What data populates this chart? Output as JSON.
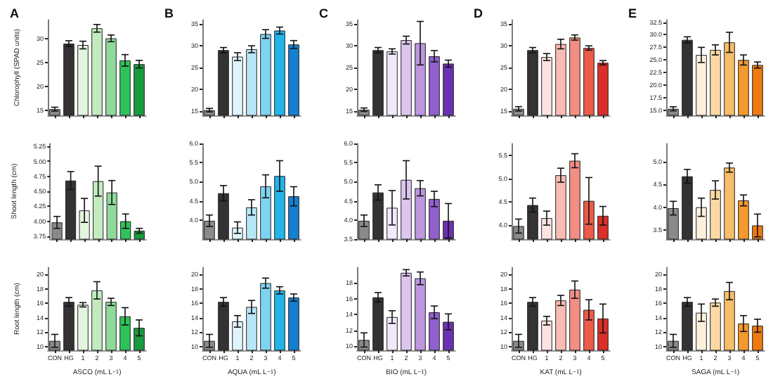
{
  "chart_data": [
    {
      "type": "bar",
      "title": "A",
      "ylabel": "Chlorophyll (SPAD units)",
      "values": [
        15.3,
        29,
        28.7,
        32.2,
        30.1,
        25.5,
        24.7
      ],
      "errors": [
        0.4,
        0.6,
        0.8,
        0.8,
        0.7,
        1.2,
        0.8
      ],
      "colors": [
        "#8a8a8a",
        "#333333",
        "#e3f5df",
        "#c2ecc0",
        "#8fd99a",
        "#2ec25a",
        "#1a9a3f"
      ],
      "ylim": [
        14,
        34
      ],
      "yticks": [
        15,
        20,
        25,
        30
      ],
      "tick_labels": "y"
    },
    {
      "type": "bar",
      "title": "B",
      "values": [
        15.2,
        29,
        27.5,
        29.2,
        32.7,
        33.5,
        30.3
      ],
      "errors": [
        0.4,
        0.6,
        0.9,
        0.8,
        1,
        0.8,
        0.9
      ],
      "colors": [
        "#8a8a8a",
        "#333333",
        "#dff3fb",
        "#b7e6f7",
        "#7fd3f2",
        "#22b5ea",
        "#1580d0"
      ],
      "ylim": [
        14,
        36
      ],
      "yticks": [
        15,
        20,
        25,
        30,
        35
      ],
      "tick_labels": "y"
    },
    {
      "type": "bar",
      "title": "C",
      "values": [
        15.3,
        29,
        28.7,
        31.3,
        30.6,
        27.6,
        25.9
      ],
      "errors": [
        0.4,
        0.6,
        0.6,
        0.9,
        5,
        1.3,
        0.8
      ],
      "colors": [
        "#8a8a8a",
        "#333333",
        "#f1e8f8",
        "#dcc6ef",
        "#bd97e0",
        "#9060cc",
        "#6a32b0"
      ],
      "ylim": [
        14,
        36
      ],
      "yticks": [
        15,
        20,
        25,
        30,
        35
      ],
      "tick_labels": "y"
    },
    {
      "type": "bar",
      "title": "D",
      "values": [
        15.5,
        29,
        27.4,
        30.4,
        31.9,
        29.5,
        26.1
      ],
      "errors": [
        0.5,
        0.6,
        0.8,
        1.1,
        0.6,
        0.5,
        0.5
      ],
      "colors": [
        "#8a8a8a",
        "#333333",
        "#fde4e1",
        "#f8bcb5",
        "#f28f84",
        "#ec5a48",
        "#d9302a"
      ],
      "ylim": [
        14,
        36
      ],
      "yticks": [
        15,
        20,
        25,
        30,
        35
      ],
      "tick_labels": "y"
    },
    {
      "type": "bar",
      "title": "E",
      "values": [
        15.3,
        29,
        26,
        27,
        28.5,
        25,
        24
      ],
      "errors": [
        0.4,
        0.6,
        1.5,
        1,
        2,
        1,
        0.6
      ],
      "colors": [
        "#8a8a8a",
        "#333333",
        "#fdf1dc",
        "#fbd9a4",
        "#f8bd6a",
        "#f3992e",
        "#ec7a10"
      ],
      "ylim": [
        14,
        33
      ],
      "yticks": [
        {
          "value": 15,
          "label": "15.0"
        },
        17.5,
        {
          "value": 20,
          "label": "20.0"
        },
        22.5,
        {
          "value": 25,
          "label": "25.0"
        },
        27.5,
        {
          "value": 30,
          "label": "30.0"
        },
        32.5
      ],
      "tick_labels": "y"
    },
    {
      "type": "bar",
      "ylabel": "Shoot length (cm)",
      "values": [
        3.98,
        4.68,
        4.18,
        4.67,
        4.48,
        4.0,
        3.84
      ],
      "errors": [
        0.1,
        0.15,
        0.2,
        0.25,
        0.2,
        0.12,
        0.04
      ],
      "colors": [
        "#8a8a8a",
        "#333333",
        "#e3f5df",
        "#c2ecc0",
        "#8fd99a",
        "#2ec25a",
        "#1a9a3f"
      ],
      "ylim": [
        3.7,
        5.3
      ],
      "yticks": [
        3.75,
        {
          "value": 4,
          "label": "4.00"
        },
        4.25,
        {
          "value": 4.5,
          "label": "4.50"
        },
        4.75,
        {
          "value": 5,
          "label": "5.00"
        },
        5.25
      ],
      "tick_labels": "y"
    },
    {
      "type": "bar",
      "values": [
        3.98,
        4.7,
        3.8,
        4.33,
        4.88,
        5.15,
        4.62
      ],
      "errors": [
        0.15,
        0.2,
        0.15,
        0.2,
        0.3,
        0.4,
        0.25
      ],
      "colors": [
        "#8a8a8a",
        "#333333",
        "#dff3fb",
        "#b7e6f7",
        "#7fd3f2",
        "#22b5ea",
        "#1580d0"
      ],
      "ylim": [
        3.5,
        6
      ],
      "yticks": [
        {
          "value": 4,
          "label": "4.0"
        },
        4.5,
        {
          "value": 5,
          "label": "5.0"
        },
        5.5,
        {
          "value": 6,
          "label": "6.0"
        }
      ],
      "tick_labels": "y"
    },
    {
      "type": "bar",
      "values": [
        3.98,
        4.72,
        4.32,
        5.05,
        4.83,
        4.55,
        3.98
      ],
      "errors": [
        0.15,
        0.2,
        0.45,
        0.5,
        0.2,
        0.2,
        0.45
      ],
      "colors": [
        "#8a8a8a",
        "#333333",
        "#f1e8f8",
        "#dcc6ef",
        "#bd97e0",
        "#9060cc",
        "#6a32b0"
      ],
      "ylim": [
        3.5,
        6
      ],
      "yticks": [
        3.5,
        {
          "value": 4,
          "label": "4.0"
        },
        4.5,
        {
          "value": 5,
          "label": "5.0"
        },
        5.5,
        {
          "value": 6,
          "label": "6.0"
        }
      ],
      "tick_labels": "y"
    },
    {
      "type": "bar",
      "values": [
        3.98,
        4.43,
        4.15,
        5.07,
        5.38,
        4.52,
        4.2
      ],
      "errors": [
        0.15,
        0.15,
        0.15,
        0.15,
        0.15,
        0.5,
        0.2
      ],
      "colors": [
        "#8a8a8a",
        "#333333",
        "#fde4e1",
        "#f8bcb5",
        "#f28f84",
        "#ec5a48",
        "#d9302a"
      ],
      "ylim": [
        3.7,
        5.75
      ],
      "yticks": [
        {
          "value": 4,
          "label": "4.0"
        },
        4.5,
        {
          "value": 5,
          "label": "5.0"
        },
        5.5
      ],
      "tick_labels": "y"
    },
    {
      "type": "bar",
      "values": [
        3.98,
        4.68,
        4.0,
        4.38,
        4.87,
        4.15,
        3.6
      ],
      "errors": [
        0.15,
        0.15,
        0.2,
        0.2,
        0.1,
        0.12,
        0.25
      ],
      "colors": [
        "#8a8a8a",
        "#333333",
        "#fdf1dc",
        "#fbd9a4",
        "#f8bd6a",
        "#f3992e",
        "#ec7a10"
      ],
      "ylim": [
        3.3,
        5.4
      ],
      "yticks": [
        3.5,
        {
          "value": 4,
          "label": "4.0"
        },
        4.5,
        {
          "value": 5,
          "label": "5.0"
        }
      ],
      "tick_labels": "y"
    },
    {
      "type": "bar",
      "ylabel": "Root length (cm)",
      "xlabel": "ASCO (mL L$^{−1}$)",
      "categories": [
        "CON",
        "HG",
        "1",
        "2",
        "3",
        "4",
        "5"
      ],
      "values": [
        10.8,
        16.2,
        15.8,
        17.8,
        16.2,
        14.2,
        12.6
      ],
      "errors": [
        0.9,
        0.6,
        0.3,
        1.2,
        0.5,
        1.2,
        1.1
      ],
      "colors": [
        "#8a8a8a",
        "#333333",
        "#e3f5df",
        "#c2ecc0",
        "#8fd99a",
        "#2ec25a",
        "#1a9a3f"
      ],
      "ylim": [
        9.5,
        21
      ],
      "yticks": [
        10,
        12,
        14,
        16,
        18,
        20
      ]
    },
    {
      "type": "bar",
      "xlabel": "AQUA (mL L$^{−1}$)",
      "categories": [
        "CON",
        "HG",
        "1",
        "2",
        "3",
        "4",
        "5"
      ],
      "values": [
        10.8,
        16.2,
        13.5,
        15.5,
        18.8,
        17.8,
        16.8
      ],
      "errors": [
        0.9,
        0.6,
        0.8,
        0.9,
        0.7,
        0.5,
        0.5
      ],
      "colors": [
        "#8a8a8a",
        "#333333",
        "#dff3fb",
        "#b7e6f7",
        "#7fd3f2",
        "#22b5ea",
        "#1580d0"
      ],
      "ylim": [
        9.5,
        21
      ],
      "yticks": [
        10,
        12,
        14,
        16,
        18,
        20
      ]
    },
    {
      "type": "bar",
      "xlabel": "BIO (mL L$^{−1}$)",
      "categories": [
        "CON",
        "HG",
        "1",
        "2",
        "3",
        "4",
        "5"
      ],
      "values": [
        10.8,
        16.2,
        13.7,
        19.3,
        18.6,
        14.3,
        13.1
      ],
      "errors": [
        0.9,
        0.6,
        0.8,
        0.4,
        0.8,
        0.8,
        1
      ],
      "colors": [
        "#8a8a8a",
        "#333333",
        "#f1e8f8",
        "#dcc6ef",
        "#bd97e0",
        "#9060cc",
        "#6a32b0"
      ],
      "ylim": [
        9.5,
        20
      ],
      "yticks": [
        10,
        12,
        14,
        16,
        18
      ]
    },
    {
      "type": "bar",
      "xlabel": "KAT (mL L$^{−1}$)",
      "categories": [
        "CON",
        "HG",
        "1",
        "2",
        "3",
        "4",
        "5"
      ],
      "values": [
        10.8,
        16.2,
        13.6,
        16.4,
        17.9,
        15.1,
        13.9
      ],
      "errors": [
        0.9,
        0.6,
        0.6,
        0.7,
        1.2,
        1.4,
        2
      ],
      "colors": [
        "#8a8a8a",
        "#333333",
        "#fde4e1",
        "#f8bcb5",
        "#f28f84",
        "#ec5a48",
        "#d9302a"
      ],
      "ylim": [
        9.5,
        21
      ],
      "yticks": [
        10,
        12,
        14,
        16,
        18,
        20
      ]
    },
    {
      "type": "bar",
      "xlabel": "SAGA (mL L$^{−1}$)",
      "categories": [
        "CON",
        "HG",
        "1",
        "2",
        "3",
        "4",
        "5"
      ],
      "values": [
        10.8,
        16.2,
        14.7,
        16.1,
        17.7,
        13.2,
        12.9
      ],
      "errors": [
        0.9,
        0.6,
        1.2,
        0.5,
        1.2,
        1.1,
        0.9
      ],
      "colors": [
        "#8a8a8a",
        "#333333",
        "#fdf1dc",
        "#fbd9a4",
        "#f8bd6a",
        "#f3992e",
        "#ec7a10"
      ],
      "ylim": [
        9.5,
        21
      ],
      "yticks": [
        10,
        12,
        14,
        16,
        18,
        20
      ]
    }
  ]
}
